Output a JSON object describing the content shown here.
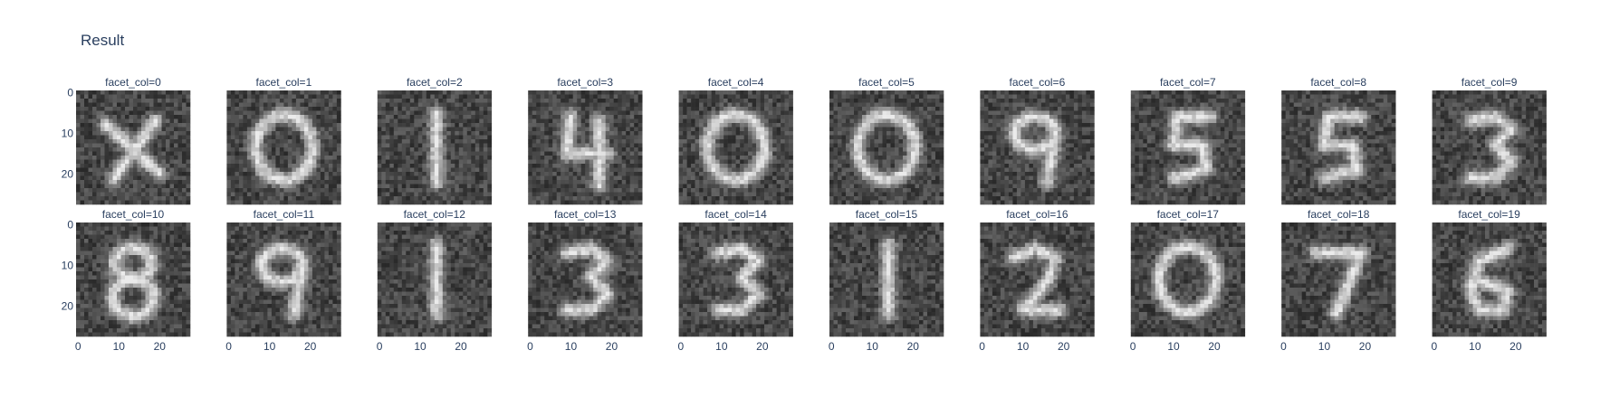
{
  "chart_data": {
    "type": "heatmap",
    "title": "Result",
    "colorscale": "gray",
    "image_size": [
      28,
      28
    ],
    "facet_labels": [
      "facet_col=0",
      "facet_col=1",
      "facet_col=2",
      "facet_col=3",
      "facet_col=4",
      "facet_col=5",
      "facet_col=6",
      "facet_col=7",
      "facet_col=8",
      "facet_col=9",
      "facet_col=10",
      "facet_col=11",
      "facet_col=12",
      "facet_col=13",
      "facet_col=14",
      "facet_col=15",
      "facet_col=16",
      "facet_col=17",
      "facet_col=18",
      "facet_col=19"
    ],
    "digits": [
      "x",
      "0",
      "1",
      "4",
      "0",
      "0",
      "9",
      "5",
      "5",
      "3",
      "8",
      "9",
      "1",
      "3",
      "3",
      "1",
      "2",
      "0",
      "7",
      "6"
    ],
    "x_tick_labels": [
      "0",
      "10",
      "20"
    ],
    "y_tick_labels": [
      "0",
      "10",
      "20"
    ],
    "grid": false
  },
  "colors": {
    "text": "#2a3f5f",
    "background": "#ffffff"
  }
}
